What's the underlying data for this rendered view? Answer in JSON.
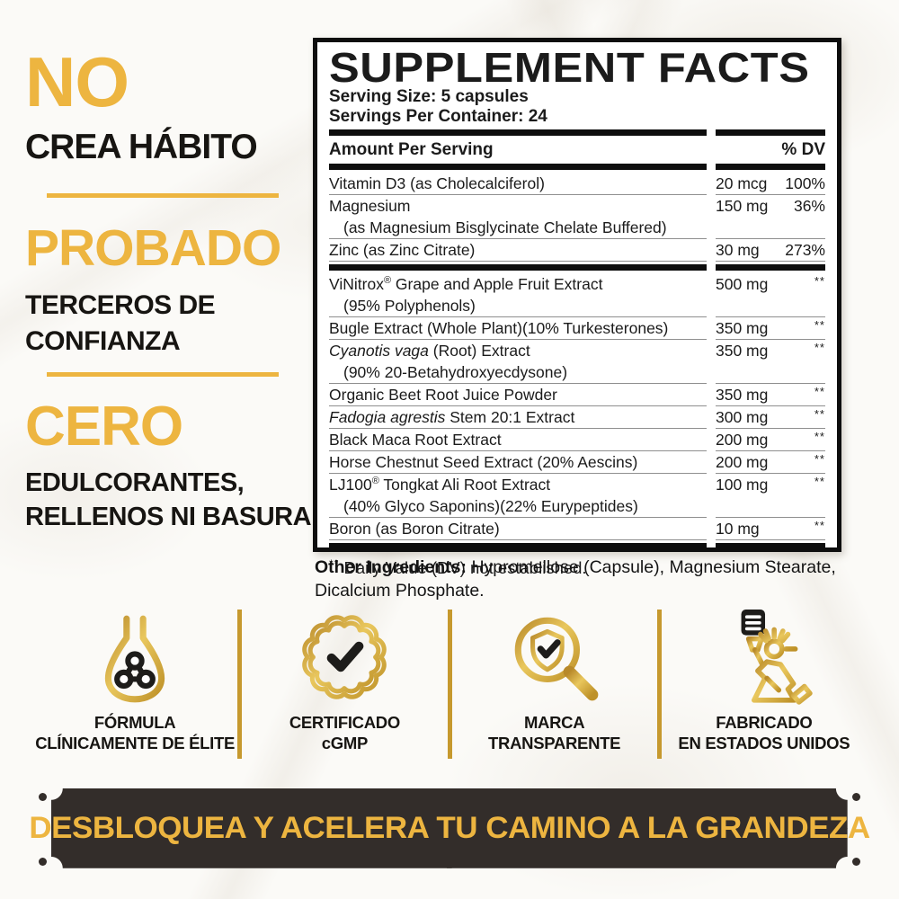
{
  "colors": {
    "gold": "#EDB540",
    "gold_deep": "#C6992E",
    "plaque": "#332D2A",
    "ink": "#1D1C1A"
  },
  "left_panel": {
    "block1": {
      "headline": "NO",
      "sub": "CREA HÁBITO"
    },
    "block2": {
      "headline": "PROBADO",
      "sub_line1": "TERCEROS DE",
      "sub_line2": "CONFIANZA"
    },
    "block3": {
      "headline": "CERO",
      "sub_line1": "EDULCORANTES,",
      "sub_line2": "RELLENOS NI BASURA"
    }
  },
  "supplement_facts": {
    "title": "SUPPLEMENT FACTS",
    "serving_size": "Serving Size: 5 capsules",
    "servings_per_container": "Servings Per Container: 24",
    "amount_header": "Amount Per Serving",
    "dv_header": "% DV",
    "rows": [
      {
        "segments": [
          {
            "t": "Vitamin D3 (as Cholecalciferol)"
          }
        ],
        "amount": "20 mcg",
        "dv": "100%"
      },
      {
        "segments": [
          {
            "t": "Magnesium"
          }
        ],
        "line2": "(as Magnesium Bisglycinate Chelate Buffered)",
        "amount": "150 mg",
        "dv": "36%"
      },
      {
        "segments": [
          {
            "t": "Zinc (as Zinc Citrate)"
          }
        ],
        "amount": "30 mg",
        "dv": "273%",
        "divider_after": true
      },
      {
        "segments": [
          {
            "t": "ViNitrox"
          },
          {
            "t": "®",
            "s": "sup"
          },
          {
            "t": " Grape and Apple Fruit Extract"
          }
        ],
        "line2": "(95% Polyphenols)",
        "amount": "500 mg",
        "dv": "**",
        "est": true
      },
      {
        "segments": [
          {
            "t": "Bugle Extract (Whole Plant)(10% Turkesterones)"
          }
        ],
        "amount": "350 mg",
        "dv": "**",
        "est": true
      },
      {
        "segments": [
          {
            "t": "Cyanotis vaga",
            "s": "i"
          },
          {
            "t": " (Root) Extract"
          }
        ],
        "line2": "(90% 20-Betahydroxyecdysone)",
        "amount": "350 mg",
        "dv": "**",
        "est": true
      },
      {
        "segments": [
          {
            "t": "Organic Beet Root Juice Powder"
          }
        ],
        "amount": "350 mg",
        "dv": "**",
        "est": true
      },
      {
        "segments": [
          {
            "t": "Fadogia agrestis",
            "s": "i"
          },
          {
            "t": " Stem 20:1 Extract"
          }
        ],
        "amount": "300 mg",
        "dv": "**",
        "est": true
      },
      {
        "segments": [
          {
            "t": "Black Maca Root Extract"
          }
        ],
        "amount": "200 mg",
        "dv": "**",
        "est": true
      },
      {
        "segments": [
          {
            "t": "Horse Chestnut Seed Extract (20% Aescins)"
          }
        ],
        "amount": "200 mg",
        "dv": "**",
        "est": true
      },
      {
        "segments": [
          {
            "t": "LJ100"
          },
          {
            "t": "®",
            "s": "sup"
          },
          {
            "t": " Tongkat Ali Root Extract"
          }
        ],
        "line2": "(40% Glyco Saponins)(22% Eurypeptides)",
        "amount": "100 mg",
        "dv": "**",
        "est": true
      },
      {
        "segments": [
          {
            "t": "Boron (as Boron Citrate)"
          }
        ],
        "amount": "10 mg",
        "dv": "**",
        "est": true,
        "divider_after": true
      }
    ],
    "footnote_marker": "**",
    "footnote": " Daily Value (DV) not established."
  },
  "other_ingredients": {
    "label": "Other Ingredients:",
    "text": " Hypromellose (Capsule), Magnesium Stearate, Dicalcium Phosphate."
  },
  "features": [
    {
      "icon": "flask-icon",
      "label_line1": "FÓRMULA",
      "label_line2": "CLÍNICAMENTE DE ÉLITE"
    },
    {
      "icon": "seal-check-icon",
      "label_line1": "CERTIFICADO",
      "label_line2": "cGMP"
    },
    {
      "icon": "magnifier-shield-icon",
      "label_line1": "MARCA",
      "label_line2": "TRANSPARENTE"
    },
    {
      "icon": "statue-of-liberty-icon",
      "label_line1": "FABRICADO",
      "label_line2": "EN ESTADOS UNIDOS"
    }
  ],
  "banner": {
    "text": "DESBLOQUEA Y ACELERA TU CAMINO A LA GRANDEZA"
  }
}
